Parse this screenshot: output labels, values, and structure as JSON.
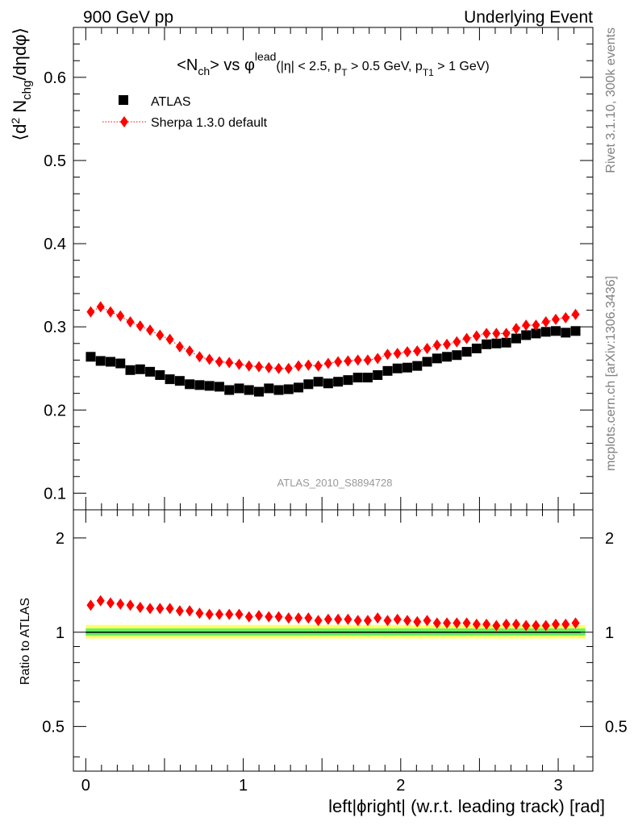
{
  "header": {
    "left": "900 GeV pp",
    "right": "Underlying Event"
  },
  "side_labels": {
    "rivet": "Rivet 3.1.10,  300k events",
    "mcplots": "mcplots.cern.ch [arXiv:1306.3436]"
  },
  "chart_data": [
    {
      "type": "scatter",
      "title": "<N_ch> vs φ^lead (|η| < 2.5, p_T > 0.5 GeV, p_T1 > 1 GeV)",
      "title_parts": {
        "n": "<N",
        "ch": "ch",
        "vs": "> vs φ",
        "lead": "lead",
        "cuts_a": "(|η| < 2.5, p",
        "t": "T",
        "cuts_b": " > 0.5 GeV, p",
        "t1": "T1",
        "cuts_c": " > 1 GeV)"
      },
      "ylabel": "⟨d² N_chg/dηdφ⟩",
      "ylabel_parts": {
        "a": "⟨d",
        "b": "2",
        "c": " N",
        "d": "chg",
        "e": "/dηdφ⟩"
      },
      "xlim": [
        -0.0785,
        3.2201
      ],
      "ylim": [
        0.08,
        0.66
      ],
      "yticks": [
        0.1,
        0.2,
        0.3,
        0.4,
        0.5,
        0.6
      ],
      "ytick_labels": [
        "0.1",
        "0.2",
        "0.3",
        "0.4",
        "0.5",
        "0.6"
      ],
      "watermark": "ATLAS_2010_S8894728",
      "legend_position": "top-left",
      "x": [
        0.0314,
        0.0942,
        0.1571,
        0.2199,
        0.2827,
        0.3456,
        0.4084,
        0.4712,
        0.5341,
        0.5969,
        0.6597,
        0.7226,
        0.7854,
        0.8482,
        0.9111,
        0.9739,
        1.0367,
        1.0996,
        1.1624,
        1.2252,
        1.2881,
        1.3509,
        1.4137,
        1.4765,
        1.5394,
        1.6022,
        1.665,
        1.7279,
        1.7907,
        1.8535,
        1.9164,
        1.9792,
        2.042,
        2.1049,
        2.1677,
        2.2305,
        2.2934,
        2.3562,
        2.419,
        2.4819,
        2.5447,
        2.6075,
        2.6704,
        2.7332,
        2.796,
        2.8588,
        2.9217,
        2.9845,
        3.0473,
        3.1102
      ],
      "series": [
        {
          "name": "ATLAS",
          "color": "#000000",
          "marker": "square",
          "values": [
            0.264,
            0.259,
            0.258,
            0.256,
            0.248,
            0.249,
            0.246,
            0.242,
            0.237,
            0.235,
            0.231,
            0.23,
            0.229,
            0.228,
            0.224,
            0.226,
            0.224,
            0.222,
            0.226,
            0.224,
            0.225,
            0.227,
            0.231,
            0.234,
            0.232,
            0.234,
            0.236,
            0.239,
            0.239,
            0.242,
            0.247,
            0.25,
            0.251,
            0.253,
            0.258,
            0.262,
            0.264,
            0.266,
            0.27,
            0.274,
            0.279,
            0.28,
            0.281,
            0.286,
            0.29,
            0.292,
            0.294,
            0.295,
            0.293,
            0.295
          ]
        },
        {
          "name": "Sherpa 1.3.0 default",
          "color": "#ff0000",
          "marker": "diamond",
          "line": "dotted",
          "values": [
            0.318,
            0.324,
            0.318,
            0.313,
            0.306,
            0.301,
            0.296,
            0.29,
            0.285,
            0.276,
            0.271,
            0.264,
            0.261,
            0.258,
            0.257,
            0.255,
            0.253,
            0.252,
            0.251,
            0.25,
            0.25,
            0.253,
            0.254,
            0.253,
            0.256,
            0.258,
            0.259,
            0.26,
            0.26,
            0.262,
            0.267,
            0.268,
            0.27,
            0.271,
            0.274,
            0.278,
            0.279,
            0.282,
            0.286,
            0.289,
            0.292,
            0.292,
            0.292,
            0.298,
            0.302,
            0.302,
            0.306,
            0.309,
            0.311,
            0.315
          ]
        }
      ]
    },
    {
      "type": "scatter",
      "ylabel": "Ratio to ATLAS",
      "xlabel": "left|ϕright| (w.r.t. leading track) [rad]",
      "xlim": [
        -0.0785,
        3.2201
      ],
      "ylim": [
        0.36,
        2.46
      ],
      "y_scale": "log",
      "yticks": [
        0.5,
        1,
        2
      ],
      "ytick_labels": [
        "0.5",
        "1",
        "2"
      ],
      "xticks": [
        0,
        1,
        2,
        3
      ],
      "xtick_labels": [
        "0",
        "1",
        "2",
        "3"
      ],
      "reference_line": 1,
      "bands": [
        {
          "color": "#ffff66",
          "low": 0.955,
          "high": 1.055
        },
        {
          "color": "#66ee66",
          "low": 0.975,
          "high": 1.028
        }
      ],
      "series": [
        {
          "name": "Sherpa 1.3.0 default",
          "color": "#ff0000",
          "marker": "diamond",
          "values": [
            1.22,
            1.26,
            1.24,
            1.23,
            1.22,
            1.2,
            1.19,
            1.19,
            1.19,
            1.17,
            1.17,
            1.15,
            1.14,
            1.14,
            1.14,
            1.14,
            1.12,
            1.13,
            1.12,
            1.12,
            1.11,
            1.11,
            1.11,
            1.09,
            1.1,
            1.1,
            1.1,
            1.09,
            1.09,
            1.11,
            1.09,
            1.1,
            1.09,
            1.08,
            1.09,
            1.07,
            1.07,
            1.07,
            1.07,
            1.06,
            1.06,
            1.05,
            1.06,
            1.06,
            1.05,
            1.05,
            1.05,
            1.06,
            1.06,
            1.07
          ]
        }
      ]
    }
  ]
}
